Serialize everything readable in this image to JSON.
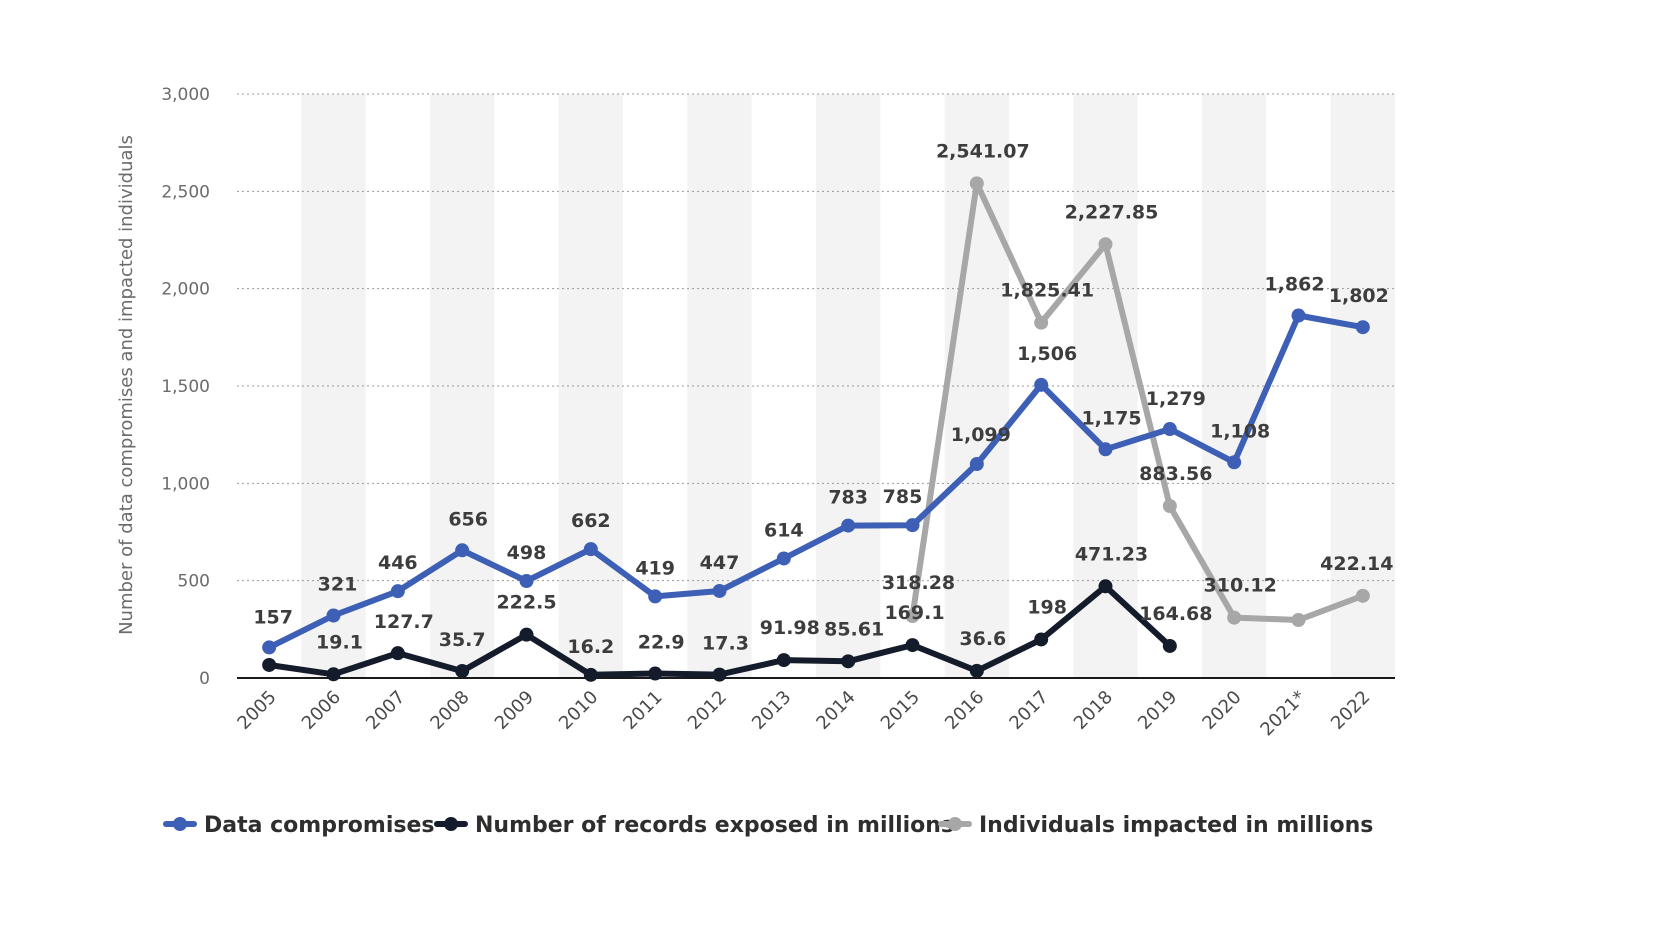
{
  "chart_data": {
    "type": "line",
    "title": "",
    "xlabel": "",
    "ylabel": "Number of data compromises and impacted individuals",
    "categories": [
      "2005",
      "2006",
      "2007",
      "2008",
      "2009",
      "2010",
      "2011",
      "2012",
      "2013",
      "2014",
      "2015",
      "2016",
      "2017",
      "2018",
      "2019",
      "2020",
      "2021*",
      "2022"
    ],
    "ylim": [
      0,
      3000
    ],
    "yticks": [
      0,
      500,
      1000,
      1500,
      2000,
      2500,
      3000
    ],
    "ytick_labels": [
      "0",
      "500",
      "1,000",
      "1,500",
      "2,000",
      "2,500",
      "3,000"
    ],
    "grid": "horizontal dotted",
    "alternating_column_bands": true,
    "legend_position": "bottom",
    "series": [
      {
        "name": "Data compromises",
        "color": "#3d5fb5",
        "values": [
          157,
          321,
          446,
          656,
          498,
          662,
          419,
          447,
          614,
          783,
          785,
          1099,
          1506,
          1175,
          1279,
          1108,
          1862,
          1802
        ],
        "labels": [
          "157",
          "321",
          "446",
          "656",
          "498",
          "662",
          "419",
          "447",
          "614",
          "783",
          "785",
          "1,099",
          "1,506",
          "1,175",
          "1,279",
          "1,108",
          "1,862",
          "1,802"
        ]
      },
      {
        "name": "Number of records exposed in millions",
        "color": "#141c2b",
        "values": [
          66.9,
          19.1,
          127.7,
          35.7,
          222.5,
          16.2,
          22.9,
          17.3,
          91.98,
          85.61,
          169.1,
          36.6,
          198,
          471.23,
          164.68,
          null,
          null,
          null
        ],
        "labels": [
          "",
          "19.1",
          "127.7",
          "35.7",
          "222.5",
          "16.2",
          "22.9",
          "17.3",
          "91.98",
          "85.61",
          "169.1",
          "36.6",
          "198",
          "471.23",
          "164.68",
          "",
          "",
          ""
        ]
      },
      {
        "name": "Individuals impacted in millions",
        "color": "#a7a7a7",
        "values": [
          null,
          null,
          null,
          null,
          null,
          null,
          null,
          null,
          null,
          null,
          318.28,
          2541.07,
          1825.41,
          2227.85,
          883.56,
          310.12,
          298,
          422.14
        ],
        "labels": [
          "",
          "",
          "",
          "",
          "",
          "",
          "",
          "",
          "",
          "",
          "318.28",
          "2,541.07",
          "1,825.41",
          "2,227.85",
          "883.56",
          "310.12",
          "",
          "422.14"
        ]
      }
    ]
  }
}
